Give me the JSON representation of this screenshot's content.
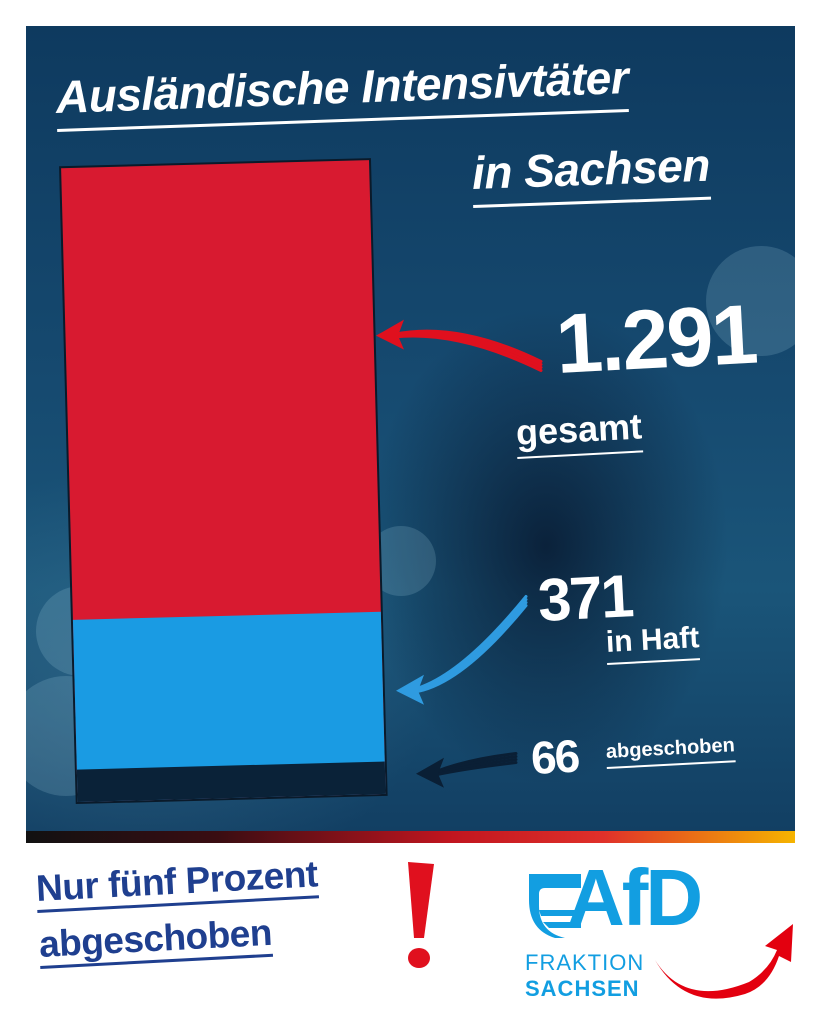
{
  "title": [
    "Ausländische Intensivtäter",
    "in Sachsen"
  ],
  "chart_data": {
    "type": "bar",
    "stacked": true,
    "values": [
      {
        "label": "gesamt",
        "value": 1291,
        "display": "1.291",
        "color": "#d81a30"
      },
      {
        "label": "in Haft",
        "value": 371,
        "display": "371",
        "color": "#1a9be3"
      },
      {
        "label": "abgeschoben",
        "value": 66,
        "display": "66",
        "color": "#0a2238"
      }
    ],
    "total": 1291,
    "arrow_colors": [
      "#e0101e",
      "#2f9be0",
      "#0a1f35"
    ]
  },
  "footer": {
    "lines": [
      "Nur fünf Prozent",
      "abgeschoben"
    ],
    "exclamation": "!"
  },
  "logo": {
    "word": "AfD",
    "line1": "FRAKTION",
    "line2": "SACHSEN",
    "color_blue": "#129ee1",
    "color_red": "#e3000f"
  }
}
